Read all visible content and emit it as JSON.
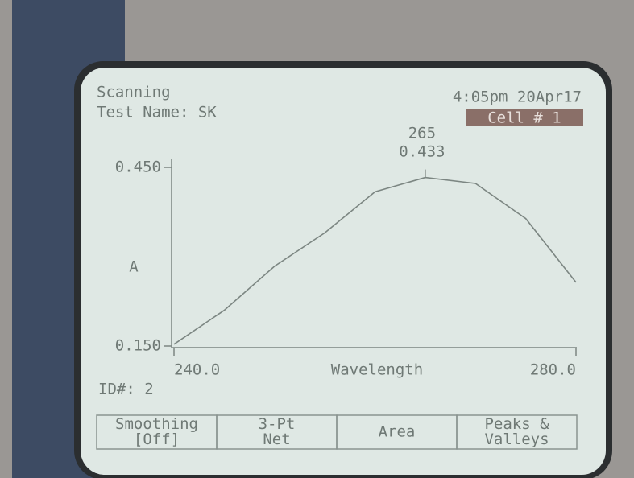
{
  "status": {
    "mode": "Scanning",
    "test_name": "Test Name: SK",
    "datetime": "4:05pm 20Apr17",
    "cell": "Cell # 1",
    "id": "ID#: 2"
  },
  "softkeys": [
    [
      "Smoothing",
      "[Off]"
    ],
    [
      "3-Pt",
      "Net"
    ],
    [
      "Area"
    ],
    [
      "Peaks &",
      "Valleys"
    ]
  ],
  "chart_data": {
    "type": "line",
    "ylabel": "A",
    "xlabel": "Wavelength",
    "x": [
      240,
      245,
      250,
      255,
      260,
      265,
      270,
      275,
      280
    ],
    "values": [
      0.153,
      0.21,
      0.284,
      0.34,
      0.409,
      0.433,
      0.423,
      0.364,
      0.257
    ],
    "color": "#7c8682",
    "xlim": [
      240,
      280
    ],
    "xticks": [
      {
        "value": 240,
        "label": "240.0"
      },
      {
        "value": 280,
        "label": "280.0"
      }
    ],
    "ylim": [
      0.15,
      0.45
    ],
    "yticks": [
      {
        "value": 0.15,
        "label": "0.150"
      },
      {
        "value": 0.45,
        "label": "0.450"
      }
    ],
    "peak_index": 5
  }
}
